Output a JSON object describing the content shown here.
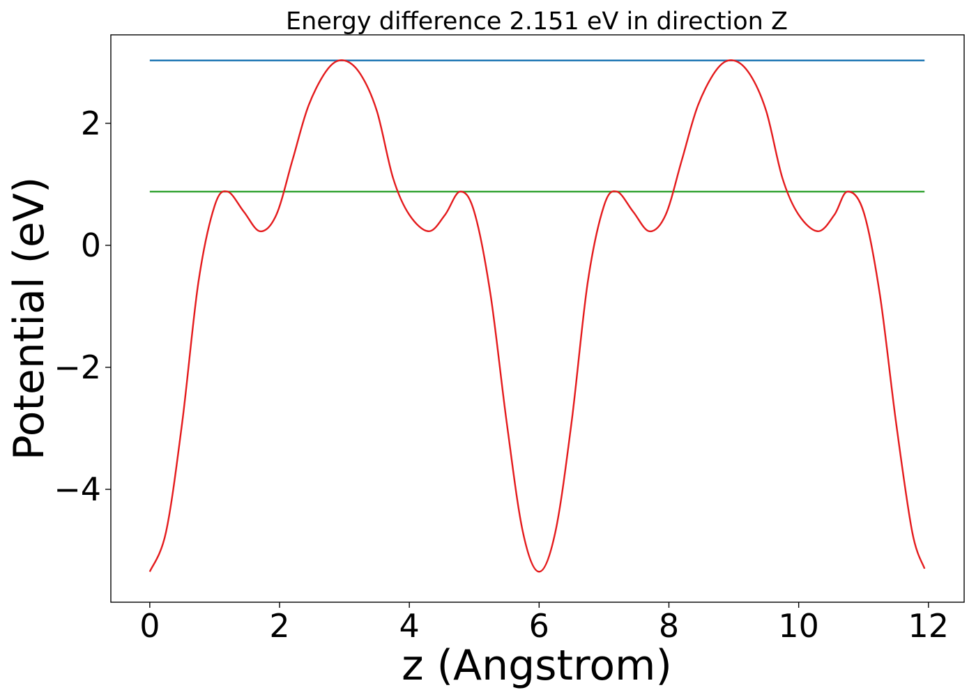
{
  "chart_data": {
    "type": "line",
    "title": "Energy difference 2.151 eV in direction Z",
    "xlabel": "z (Angstrom)",
    "ylabel": "Potential (eV)",
    "xlim": [
      -0.6,
      12.55
    ],
    "ylim": [
      -5.85,
      3.45
    ],
    "xticks": [
      0,
      2,
      4,
      6,
      8,
      10,
      12
    ],
    "xtick_labels": [
      "0",
      "2",
      "4",
      "6",
      "8",
      "10",
      "12"
    ],
    "yticks": [
      -4,
      -2,
      0,
      2
    ],
    "ytick_labels": [
      "−4",
      "−2",
      "0",
      "2"
    ],
    "grid": false,
    "series": [
      {
        "color": "#1f77b4",
        "x": [
          0,
          11.94
        ],
        "y": [
          3.03,
          3.03
        ]
      },
      {
        "color": "#2ca02c",
        "x": [
          0,
          11.94
        ],
        "y": [
          0.88,
          0.88
        ]
      },
      {
        "color": "#e41a1c",
        "x": [
          0,
          0.25,
          0.5,
          0.75,
          1.0,
          1.2,
          1.45,
          1.7,
          1.95,
          2.2,
          2.45,
          2.75,
          3.0,
          3.25,
          3.5,
          3.75,
          4.0,
          4.3,
          4.55,
          4.78,
          5.0,
          5.25,
          5.5,
          5.75,
          6.0,
          6.25,
          6.5,
          6.75,
          7.0,
          7.2,
          7.45,
          7.7,
          7.95,
          8.2,
          8.45,
          8.75,
          9.0,
          9.25,
          9.5,
          9.75,
          10.0,
          10.3,
          10.55,
          10.75,
          11.0,
          11.25,
          11.5,
          11.75,
          11.94
        ],
        "y": [
          -5.35,
          -4.7,
          -2.9,
          -0.6,
          0.65,
          0.88,
          0.55,
          0.23,
          0.5,
          1.4,
          2.3,
          2.9,
          3.03,
          2.8,
          2.2,
          1.1,
          0.5,
          0.23,
          0.5,
          0.88,
          0.55,
          -0.8,
          -2.9,
          -4.7,
          -5.35,
          -4.7,
          -2.9,
          -0.6,
          0.65,
          0.88,
          0.55,
          0.23,
          0.5,
          1.4,
          2.3,
          2.9,
          3.03,
          2.8,
          2.2,
          1.1,
          0.5,
          0.23,
          0.5,
          0.88,
          0.55,
          -0.8,
          -2.9,
          -4.7,
          -5.3
        ]
      }
    ]
  }
}
